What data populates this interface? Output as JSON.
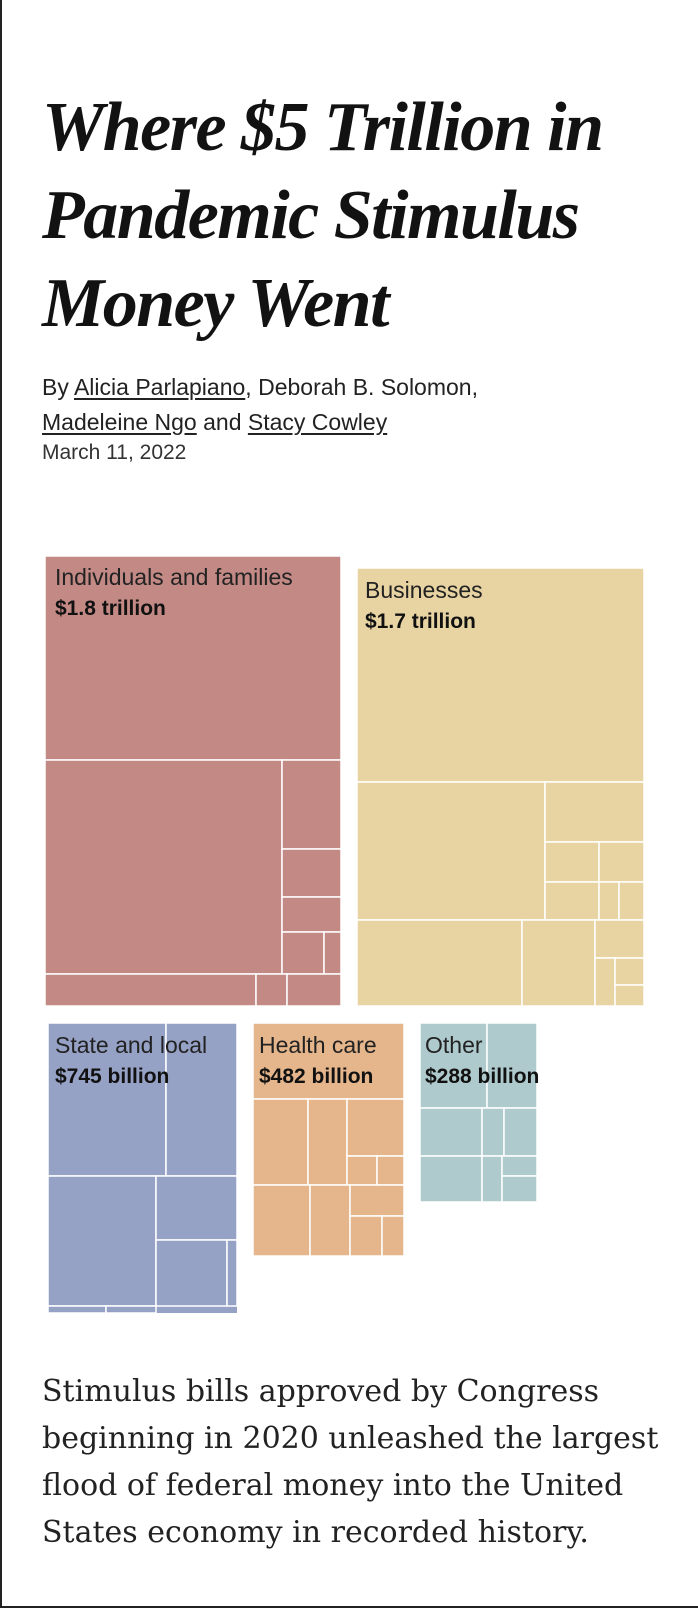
{
  "headline": "Where $5 Trillion in Pandemic Stimulus Money Went",
  "byline": {
    "prefix": "By",
    "authors": [
      "Alicia Parlapiano",
      "Deborah B. Solomon",
      "Madeleine Ngo",
      "Stacy Cowley"
    ],
    "sep1": ",",
    "sep2": ",",
    "sep3": "and"
  },
  "date": "March 11, 2022",
  "chart_data": {
    "type": "treemap",
    "title": "",
    "units": "USD",
    "categories": [
      {
        "name": "Individuals and families",
        "label_value": "$1.8 trillion",
        "value": 1800,
        "color": "#c38985"
      },
      {
        "name": "Businesses",
        "label_value": "$1.7 trillion",
        "value": 1700,
        "color": "#e8d3a2"
      },
      {
        "name": "State and local",
        "label_value": "$745 billion",
        "value": 745,
        "color": "#96a1c6"
      },
      {
        "name": "Health care",
        "label_value": "$482 billion",
        "value": 482,
        "color": "#e5b68c"
      },
      {
        "name": "Other",
        "label_value": "$288 billion",
        "value": 288,
        "color": "#afcacd"
      }
    ]
  },
  "body": "Stimulus bills approved by Congress beginning in 2020 unleashed the largest flood of federal money into the United States economy in recorded history."
}
